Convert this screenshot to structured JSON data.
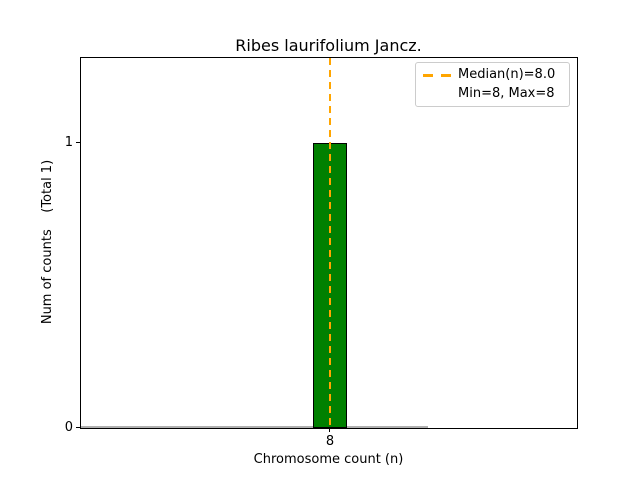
{
  "figure": {
    "title": "Ribes laurifolium Jancz.",
    "xlabel": "Chromosome count (n)",
    "ylabel": "Num of counts    (Total 1)",
    "x_ticks": [
      "8"
    ],
    "y_ticks": [
      "0",
      "1"
    ],
    "legend": {
      "position": "upper right",
      "entries": [
        {
          "label": "Median(n)=8.0",
          "handle": "orange-dashed-line"
        },
        {
          "label": "Min=8, Max=8",
          "handle": "none"
        }
      ]
    }
  },
  "chart_data": {
    "type": "bar",
    "title": "Ribes laurifolium Jancz.",
    "xlabel": "Chromosome count (n)",
    "ylabel": "Num of counts    (Total 1)",
    "categories": [
      8
    ],
    "values": [
      1
    ],
    "total_counts": 1,
    "median_n": 8.0,
    "min_n": 8,
    "max_n": 8,
    "ylim": [
      0,
      1.3
    ],
    "grid": false,
    "legend_position": "upper right",
    "annotations": [
      "Median(n)=8.0",
      "Min=8, Max=8"
    ],
    "colors": {
      "bar_fill": "#008000",
      "bar_edge": "#000000",
      "median_line": "#FFA500",
      "zero_bars_line": "#b0b0b0",
      "legend_border": "#cccccc",
      "spine": "#000000",
      "text": "#000000",
      "background": "#ffffff"
    }
  }
}
